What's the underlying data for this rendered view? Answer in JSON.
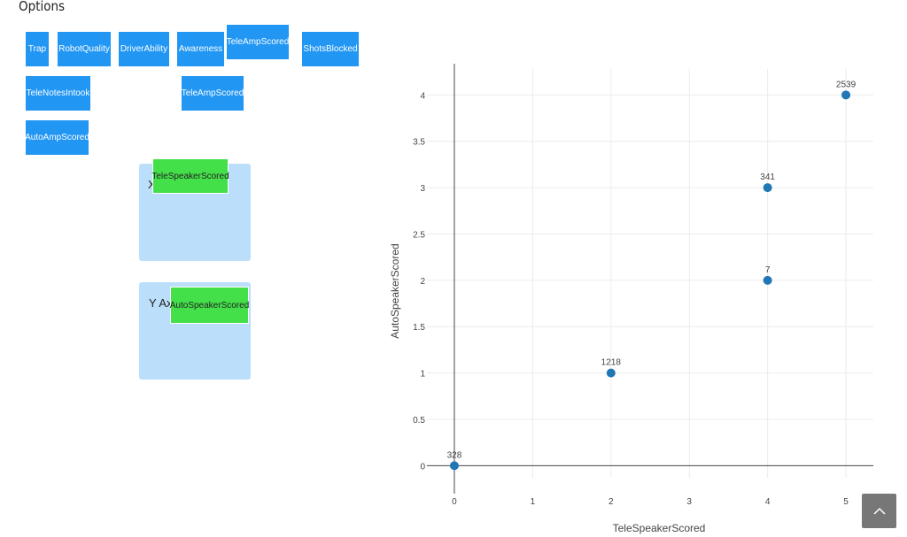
{
  "options": {
    "title": "Options",
    "chips": [
      "Trap",
      "RobotQuality",
      "DriverAbility",
      "Awareness",
      "TeleAmpScored",
      "ShotsBlocked",
      "TeleNotesIntook",
      "TeleAmpScored",
      "AutoAmpScored"
    ]
  },
  "x_zone": {
    "label": "X",
    "value": "TeleSpeakerScored"
  },
  "y_zone": {
    "label": "Y Ax",
    "value": "AutoSpeakerScored"
  },
  "scroll_top": {
    "icon": "chevron-up-icon"
  },
  "colors": {
    "chip": "#2196f3",
    "selected_chip": "#44e04a",
    "drop_zone": "#bbdefb",
    "marker": "#1f77b4"
  },
  "chart_data": {
    "type": "scatter",
    "xlabel": "TeleSpeakerScored",
    "ylabel": "AutoSpeakerScored",
    "xlim": [
      -0.35,
      5.35
    ],
    "ylim": [
      -0.13,
      4.28
    ],
    "xticks": [
      0,
      1,
      2,
      3,
      4,
      5
    ],
    "yticks": [
      0,
      0.5,
      1,
      1.5,
      2,
      2.5,
      3,
      3.5,
      4
    ],
    "grid": true,
    "points": [
      {
        "x": 0,
        "y": 0,
        "label": "328"
      },
      {
        "x": 2,
        "y": 1,
        "label": "1218"
      },
      {
        "x": 4,
        "y": 2,
        "label": "7"
      },
      {
        "x": 4,
        "y": 3,
        "label": "341"
      },
      {
        "x": 5,
        "y": 4,
        "label": "2539"
      }
    ]
  }
}
